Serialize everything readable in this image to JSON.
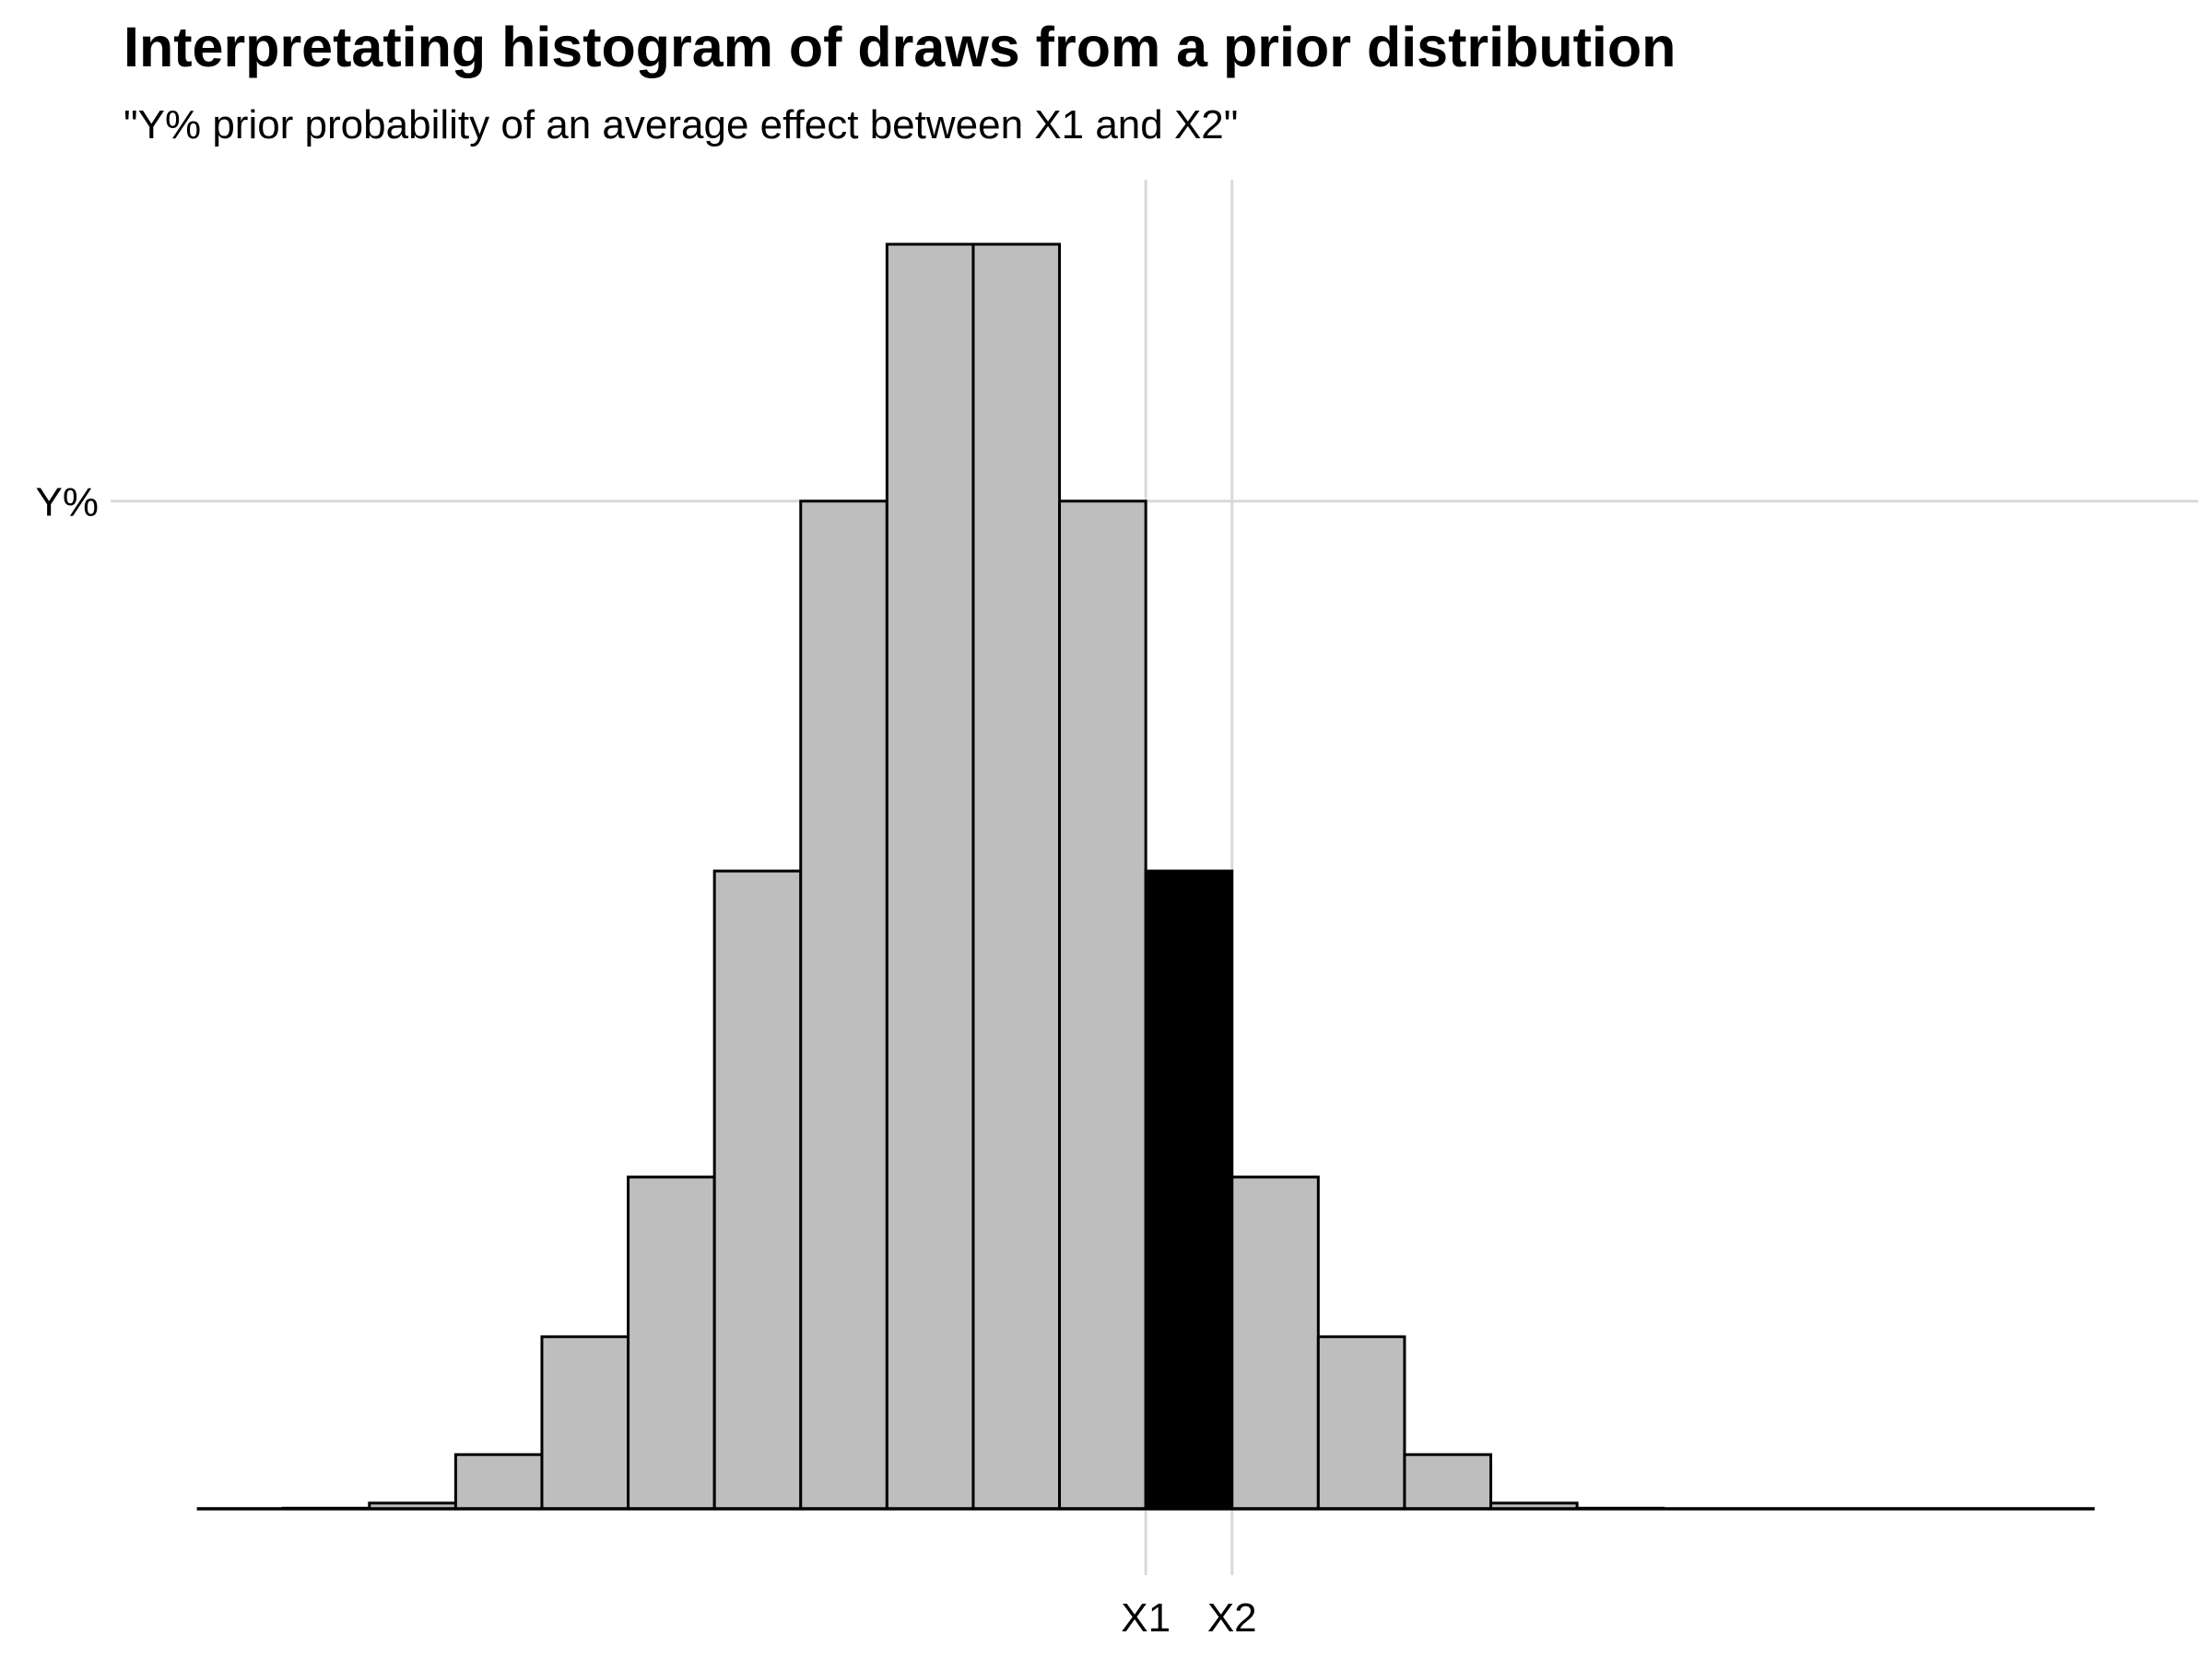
{
  "chart_data": {
    "type": "bar",
    "title": "Interpretating histogram of draws from a prior distribution",
    "subtitle": "\"Y% prior probability of an average effect between X1 and X2\"",
    "xlabel": "",
    "ylabel": "",
    "bin_width": 1,
    "bins_start": [
      -11,
      -10,
      -9,
      -8,
      -7,
      -6,
      -5,
      -4,
      -3,
      -2,
      -1,
      0,
      1,
      2,
      3,
      4,
      5,
      6,
      7,
      8,
      9
    ],
    "values": [
      0,
      0.0003,
      0.0028,
      0.0267,
      0.0848,
      0.1635,
      0.3143,
      0.4966,
      0.6232,
      0.6232,
      0.4966,
      0.3143,
      0.1635,
      0.0848,
      0.0267,
      0.0028,
      0.0003,
      0,
      0,
      0,
      0
    ],
    "highlight_bin_start": 0,
    "colors": {
      "bar_fill": "#bebebe",
      "highlight_fill": "#000000",
      "bar_stroke": "#000000",
      "grid": "#d9d9d9",
      "baseline": "#000000"
    },
    "xlim": [
      -12,
      12.2
    ],
    "ylim": [
      0,
      0.6232
    ],
    "x_ticks": [
      {
        "value": 0,
        "label": "X1"
      },
      {
        "value": 1,
        "label": "X2"
      }
    ],
    "y_ticks": [
      {
        "value": 0.4966,
        "label": "Y%"
      }
    ],
    "baseline_range": [
      -11,
      11
    ],
    "grid": "major lines at labeled ticks only",
    "legend": "none"
  }
}
